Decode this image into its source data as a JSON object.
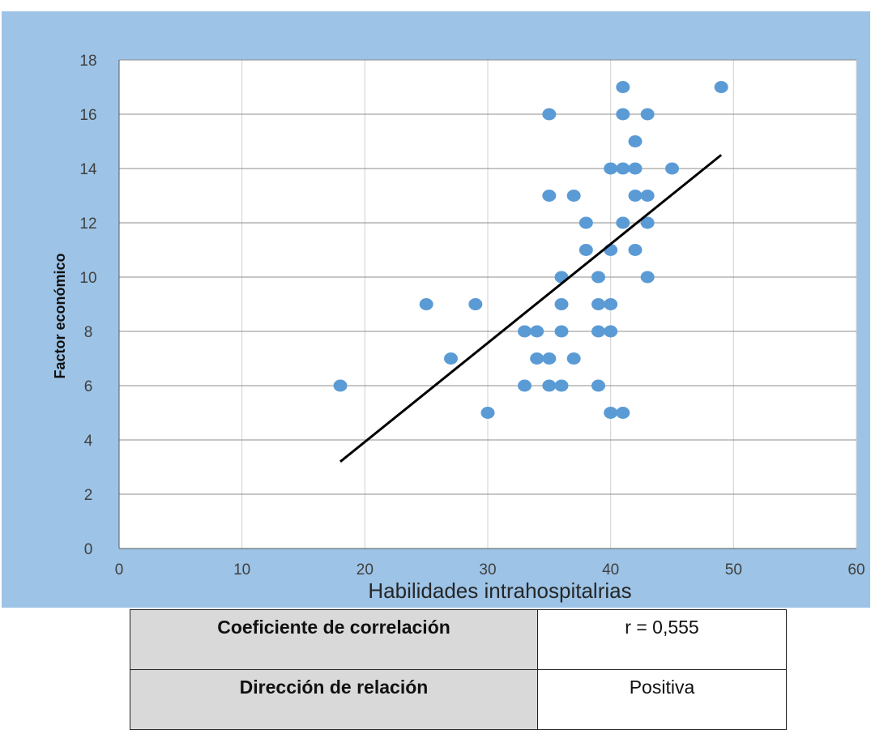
{
  "chart_data": {
    "type": "scatter",
    "xlabel": "Habilidades intrahospitalrias",
    "ylabel": "Factor económico",
    "xlim": [
      0,
      60
    ],
    "ylim": [
      0,
      18
    ],
    "x_ticks": [
      "0",
      "10",
      "20",
      "30",
      "40",
      "50",
      "60"
    ],
    "y_ticks": [
      "0",
      "2",
      "4",
      "6",
      "8",
      "10",
      "12",
      "14",
      "16",
      "18"
    ],
    "grid": true,
    "points": [
      [
        18,
        6
      ],
      [
        25,
        9
      ],
      [
        27,
        7
      ],
      [
        29,
        9
      ],
      [
        30,
        5
      ],
      [
        33,
        8
      ],
      [
        33,
        6
      ],
      [
        34,
        8
      ],
      [
        34,
        7
      ],
      [
        35,
        16
      ],
      [
        35,
        13
      ],
      [
        35,
        7
      ],
      [
        35,
        6
      ],
      [
        36,
        10
      ],
      [
        36,
        9
      ],
      [
        36,
        8
      ],
      [
        36,
        6
      ],
      [
        37,
        13
      ],
      [
        37,
        7
      ],
      [
        38,
        12
      ],
      [
        38,
        11
      ],
      [
        39,
        10
      ],
      [
        39,
        9
      ],
      [
        39,
        8
      ],
      [
        39,
        6
      ],
      [
        40,
        14
      ],
      [
        40,
        11
      ],
      [
        40,
        9
      ],
      [
        40,
        8
      ],
      [
        40,
        5
      ],
      [
        41,
        17
      ],
      [
        41,
        16
      ],
      [
        41,
        14
      ],
      [
        41,
        12
      ],
      [
        41,
        5
      ],
      [
        42,
        15
      ],
      [
        42,
        14
      ],
      [
        42,
        13
      ],
      [
        42,
        11
      ],
      [
        43,
        16
      ],
      [
        43,
        13
      ],
      [
        43,
        12
      ],
      [
        43,
        10
      ],
      [
        45,
        14
      ],
      [
        49,
        17
      ]
    ],
    "trendline": {
      "x": [
        18,
        49
      ],
      "y": [
        3.2,
        14.5
      ]
    },
    "colors": {
      "points": "#5b9bd5",
      "trendline": "#000000",
      "background": "#9dc3e6",
      "plot": "#ffffff"
    }
  },
  "table": {
    "rows": [
      {
        "label": "Coeficiente de correlación",
        "value": "r = 0,555"
      },
      {
        "label": "Dirección de relación",
        "value": "Positiva"
      }
    ]
  }
}
